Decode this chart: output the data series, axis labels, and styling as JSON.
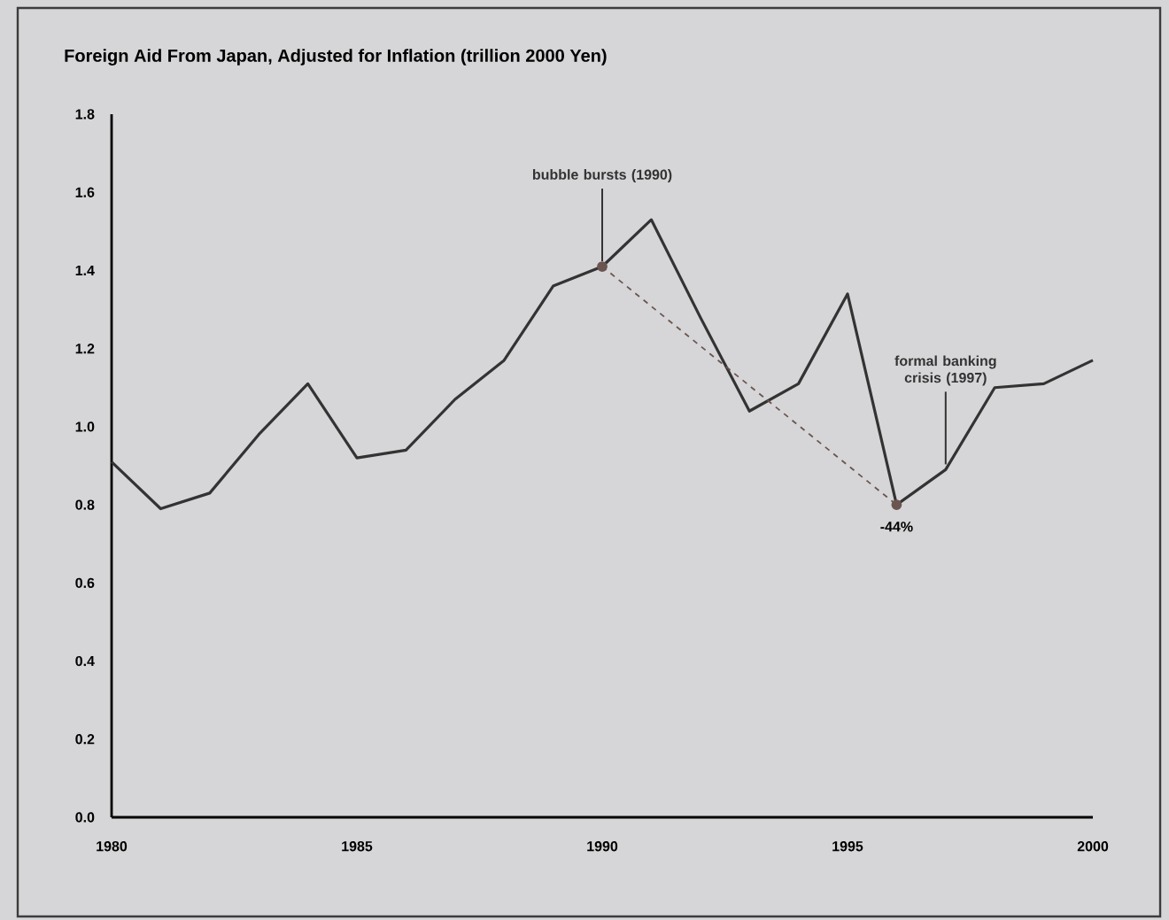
{
  "chart_data": {
    "type": "line",
    "title": "Foreign Aid From Japan, Adjusted for Inflation (trillion 2000 Yen)",
    "x": [
      1980,
      1981,
      1982,
      1983,
      1984,
      1985,
      1986,
      1987,
      1988,
      1989,
      1990,
      1991,
      1992,
      1993,
      1994,
      1995,
      1996,
      1997,
      1998,
      1999,
      2000
    ],
    "series": [
      {
        "color": "#333333",
        "line_style": "solid",
        "marker": "none",
        "values": [
          0.91,
          0.79,
          0.83,
          0.98,
          1.11,
          0.92,
          0.94,
          1.07,
          1.17,
          1.36,
          1.41,
          1.53,
          1.28,
          1.04,
          1.11,
          1.34,
          0.8,
          0.89,
          1.1,
          1.11,
          1.17
        ]
      },
      {
        "type": "line",
        "color": "#6b5550",
        "line_style": "dashed",
        "marker": "circle",
        "x": [
          1990,
          1996
        ],
        "values": [
          1.41,
          0.8
        ]
      }
    ],
    "xlim": [
      1980,
      2000
    ],
    "xticks": [
      1980,
      1985,
      1990,
      1995,
      2000
    ],
    "ylim": [
      0,
      1.8
    ],
    "yticks": [
      {
        "value": 0,
        "label": "0.0"
      },
      0.2,
      0.4,
      0.6,
      0.8,
      {
        "value": 1,
        "label": "1.0"
      },
      1.2,
      1.4,
      1.6,
      1.8
    ],
    "annotations": [
      {
        "text": "bubble bursts (1990)",
        "x": 1990,
        "y": 1.41
      },
      {
        "text": "formal banking crisis (1997)",
        "x": 1997,
        "y": 0.89
      },
      {
        "text": "-44%",
        "x": 1996,
        "y": 0.8
      }
    ]
  }
}
